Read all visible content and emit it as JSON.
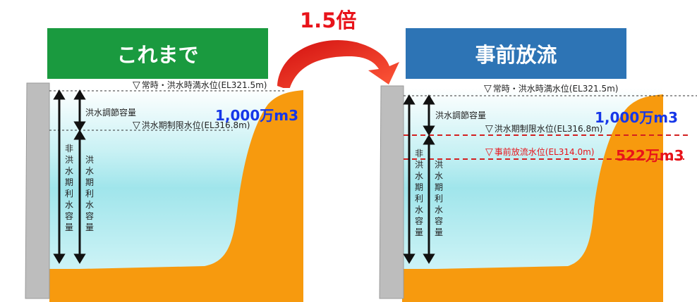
{
  "ratio_label": "1.5倍",
  "left": {
    "header": "これまで",
    "full_level": "常時・洪水時満水位(EL321.5m)",
    "flood_control_capacity": "洪水調節容量",
    "flood_limit_level": "洪水期制限水位(EL316.8m)",
    "volume": "1,000万m3",
    "non_flood_capacity": "非洪水期利水容量",
    "flood_season_capacity": "洪水期利水容量"
  },
  "right": {
    "header": "事前放流",
    "full_level": "常時・洪水時満水位(EL321.5m)",
    "flood_control_capacity": "洪水調節容量",
    "flood_limit_level": "洪水期制限水位(EL316.8m)",
    "volume": "1,000万m3",
    "pre_release_level": "事前放流水位(EL314.0m)",
    "pre_release_volume": "522万m3",
    "non_flood_capacity": "非洪水期利水容量",
    "flood_season_capacity": "洪水期利水容量"
  },
  "colors": {
    "green_header": "#1a9a3f",
    "blue_header": "#2d74b5",
    "water_top": "#ffffff",
    "water_mid": "#9fe6ec",
    "ground": "#f79a0e",
    "dam": "#bdbdbd",
    "accent_red": "#e8131a",
    "accent_blue": "#1637e8"
  }
}
